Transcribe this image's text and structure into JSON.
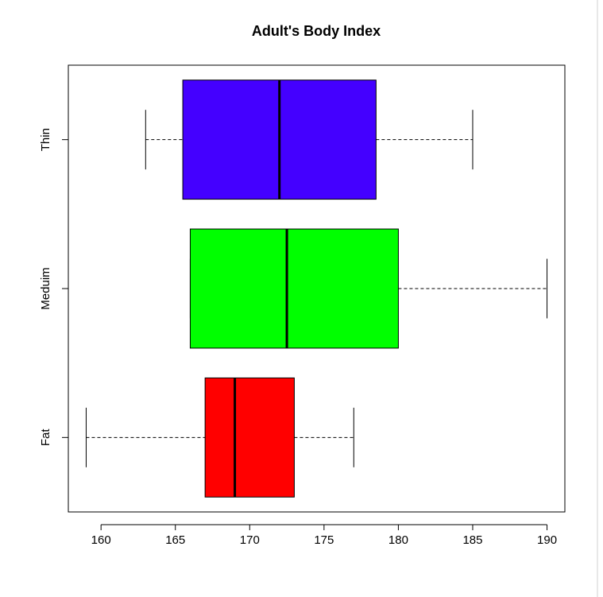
{
  "chart_data": {
    "type": "boxplot",
    "orientation": "horizontal",
    "title": "Adult's Body Index",
    "categories": [
      "Fat",
      "Meduim",
      "Thin"
    ],
    "colors": [
      "#ff0000",
      "#00ff00",
      "#4400ff"
    ],
    "boxes": [
      {
        "min": 159,
        "q1": 167,
        "median": 169,
        "q3": 173,
        "max": 177
      },
      {
        "min": 166,
        "q1": 166,
        "median": 172.5,
        "q3": 180,
        "max": 190
      },
      {
        "min": 163,
        "q1": 165.5,
        "median": 172,
        "q3": 178.5,
        "max": 185
      }
    ],
    "xlim": [
      157.8,
      191.2
    ],
    "xticks": [
      160,
      165,
      170,
      175,
      180,
      185,
      190
    ]
  }
}
